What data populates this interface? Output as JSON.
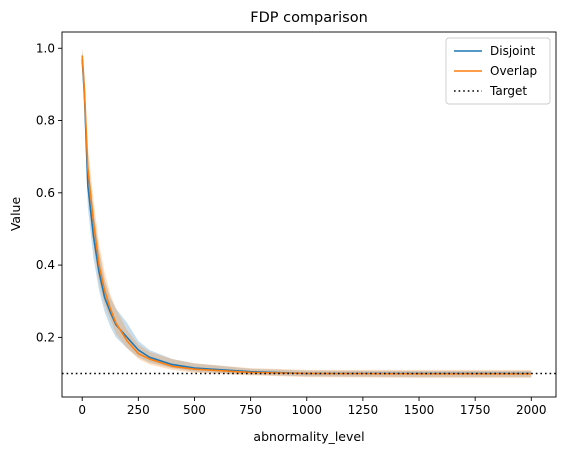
{
  "chart_data": {
    "type": "line",
    "title": "FDP comparison",
    "xlabel": "abnormality_level",
    "ylabel": "Value",
    "xlim": [
      -90,
      2110
    ],
    "ylim": [
      0.035,
      1.045
    ],
    "xticks": [
      0,
      250,
      500,
      750,
      1000,
      1250,
      1500,
      1750,
      2000
    ],
    "yticks": [
      0.2,
      0.4,
      0.6,
      0.8,
      1.0
    ],
    "ytick_labels": [
      "0.2",
      "0.4",
      "0.6",
      "0.8",
      "1.0"
    ],
    "grid": false,
    "legend_position": "top-right",
    "x": [
      0,
      10,
      25,
      50,
      75,
      100,
      125,
      150,
      200,
      250,
      300,
      400,
      500,
      750,
      1000,
      1500,
      2000
    ],
    "series": [
      {
        "name": "Disjoint",
        "color": "#1f77b4",
        "values": [
          0.97,
          0.87,
          0.62,
          0.48,
          0.38,
          0.31,
          0.27,
          0.235,
          0.2,
          0.165,
          0.145,
          0.125,
          0.115,
          0.105,
          0.1,
          0.1,
          0.1
        ],
        "lower": [
          0.94,
          0.82,
          0.56,
          0.42,
          0.33,
          0.27,
          0.23,
          0.2,
          0.17,
          0.145,
          0.13,
          0.115,
          0.105,
          0.097,
          0.092,
          0.09,
          0.09
        ],
        "upper": [
          1.0,
          0.93,
          0.69,
          0.55,
          0.44,
          0.36,
          0.31,
          0.28,
          0.24,
          0.19,
          0.165,
          0.14,
          0.128,
          0.113,
          0.108,
          0.107,
          0.107
        ]
      },
      {
        "name": "Overlap",
        "color": "#ff7f0e",
        "values": [
          0.98,
          0.88,
          0.67,
          0.52,
          0.4,
          0.33,
          0.28,
          0.24,
          0.19,
          0.155,
          0.14,
          0.12,
          0.112,
          0.103,
          0.1,
          0.099,
          0.099
        ],
        "lower": [
          0.95,
          0.83,
          0.6,
          0.46,
          0.35,
          0.29,
          0.25,
          0.21,
          0.17,
          0.14,
          0.125,
          0.11,
          0.102,
          0.095,
          0.09,
          0.088,
          0.088
        ],
        "upper": [
          1.0,
          0.93,
          0.73,
          0.58,
          0.46,
          0.38,
          0.32,
          0.28,
          0.22,
          0.18,
          0.16,
          0.14,
          0.128,
          0.115,
          0.11,
          0.11,
          0.11
        ]
      },
      {
        "name": "Target",
        "color": "#000000",
        "style": "dotted",
        "y": 0.1
      }
    ]
  }
}
